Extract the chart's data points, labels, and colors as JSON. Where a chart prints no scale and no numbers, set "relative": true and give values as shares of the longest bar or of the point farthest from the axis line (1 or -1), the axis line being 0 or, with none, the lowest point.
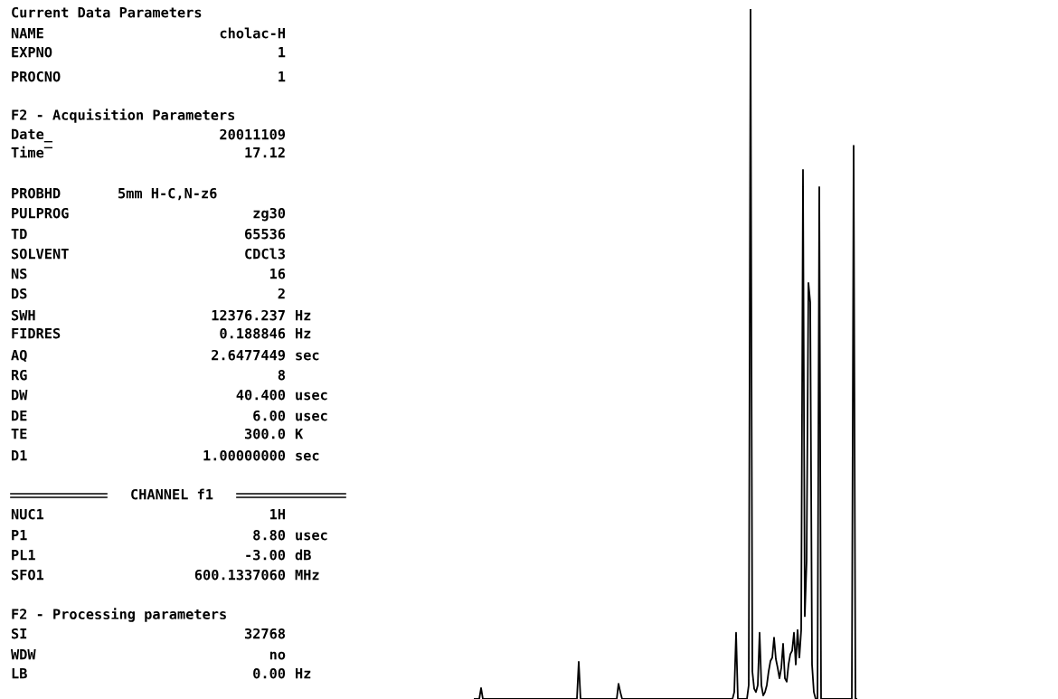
{
  "chart_data": {
    "type": "line",
    "relative": true,
    "categories": [
      null,
      null,
      null,
      null,
      null,
      null,
      null,
      null,
      null,
      null,
      null,
      null,
      null,
      null,
      null,
      null,
      null,
      null,
      null,
      null,
      null,
      null,
      null,
      null,
      null,
      null,
      null,
      null,
      null,
      null,
      null,
      null,
      null,
      null,
      null,
      null,
      null,
      null,
      null,
      null,
      null,
      null,
      null,
      null,
      null,
      null,
      null,
      null,
      null,
      null,
      null,
      null,
      null,
      null,
      null,
      null,
      null,
      null,
      null,
      null,
      null,
      null,
      null,
      null,
      null,
      null,
      null,
      null,
      null,
      null,
      null,
      null,
      null,
      null,
      null,
      null,
      null,
      null,
      null,
      null,
      null,
      null,
      null,
      null,
      null,
      null,
      null,
      null,
      null,
      null,
      null,
      null,
      null,
      null,
      null,
      null,
      null,
      null,
      null,
      null,
      null,
      null,
      null,
      null,
      null,
      null,
      null,
      null,
      null,
      null,
      null,
      null,
      null,
      null,
      null,
      null,
      null,
      null,
      null,
      null,
      null,
      null,
      null,
      null,
      null,
      null,
      null,
      null,
      null,
      null,
      null,
      null,
      null,
      null,
      null,
      null,
      null,
      null,
      null,
      null,
      null,
      null,
      null,
      null,
      null,
      null,
      null,
      null,
      null,
      null,
      null,
      null,
      null,
      null,
      null,
      null,
      null,
      null,
      null,
      null,
      null,
      null,
      null,
      null,
      null,
      null,
      null,
      null,
      null,
      null,
      null,
      null,
      null,
      null,
      null,
      null,
      null,
      null,
      null,
      null,
      null,
      null,
      null,
      null,
      null,
      null,
      null,
      null,
      null,
      null,
      null,
      null,
      null,
      null,
      null,
      null,
      null,
      null,
      null,
      null,
      null,
      null,
      null,
      null,
      null,
      null,
      null,
      null,
      null,
      null,
      null,
      null,
      null
    ],
    "series": [
      {
        "color": "#000000",
        "values": [
          0,
          0,
          0,
          0,
          0.016,
          0,
          0,
          0,
          0,
          0,
          0,
          0,
          0,
          0,
          0,
          0,
          0,
          0,
          0,
          0,
          0,
          0,
          0,
          0,
          0,
          0,
          0,
          0,
          0,
          0,
          0,
          0,
          0,
          0,
          0,
          0,
          0,
          0,
          0,
          0,
          0,
          0,
          0,
          0,
          0,
          0,
          0,
          0,
          0,
          0,
          0,
          0,
          0,
          0,
          0,
          0,
          0,
          0,
          0.054,
          0,
          0,
          0,
          0,
          0,
          0,
          0,
          0,
          0,
          0,
          0,
          0,
          0,
          0,
          0,
          0,
          0,
          0,
          0,
          0,
          0,
          0.022,
          0.01,
          0,
          0,
          0,
          0,
          0,
          0,
          0,
          0,
          0,
          0,
          0,
          0,
          0,
          0,
          0,
          0,
          0,
          0,
          0,
          0,
          0,
          0,
          0,
          0,
          0,
          0,
          0,
          0,
          0,
          0,
          0,
          0,
          0,
          0,
          0,
          0,
          0,
          0,
          0,
          0,
          0,
          0,
          0,
          0,
          0,
          0,
          0,
          0,
          0,
          0,
          0,
          0,
          0,
          0,
          0,
          0,
          0,
          0,
          0,
          0,
          0,
          0,
          0.01,
          0.096,
          0,
          0,
          0,
          0,
          0,
          0,
          0.02,
          1.0,
          0.04,
          0.015,
          0.01,
          0.02,
          0.096,
          0.02,
          0.005,
          0.01,
          0.02,
          0.04,
          0.055,
          0.06,
          0.089,
          0.058,
          0.045,
          0.03,
          0.045,
          0.08,
          0.03,
          0.025,
          0.05,
          0.065,
          0.07,
          0.096,
          0.05,
          0.1,
          0.06,
          0.1,
          0.767,
          0.12,
          0.2,
          0.603,
          0.575,
          0.05,
          0.01,
          0,
          0,
          0.742,
          0,
          0,
          0,
          0,
          0,
          0,
          0,
          0,
          0,
          0,
          0,
          0,
          0,
          0,
          0,
          0,
          0,
          0,
          0.802,
          0,
          0
        ]
      }
    ],
    "annotations": [
      "Current Data Parameters",
      "NAME",
      "cholac-H",
      "EXPNO",
      "1",
      "PROCNO",
      "1",
      "F2 - Acquisition Parameters",
      "Date_",
      "20011109",
      "Time‾",
      "17.12",
      "PROBHD",
      "5mm H-C,N-z6",
      "PULPROG",
      "zg30",
      "TD",
      "65536",
      "SOLVENT",
      "CDCl3",
      "NS",
      "16",
      "DS",
      "2",
      "SWH",
      "12376.237",
      "Hz",
      "FIDRES",
      "0.188846",
      "Hz",
      "AQ",
      "2.6477449",
      "sec",
      "RG",
      "8",
      "DW",
      "40.400",
      "usec",
      "DE",
      "6.00",
      "usec",
      "TE",
      "300.0",
      "K",
      "D1",
      "1.00000000",
      "sec",
      "CHANNEL f1",
      "NUC1",
      "1H",
      "P1",
      "8.80",
      "usec",
      "PL1",
      "-3.00",
      "dB",
      "SFO1",
      "600.1337060",
      "MHz",
      "F2 - Processing parameters",
      "SI",
      "32768",
      "WDW",
      "no",
      "LB",
      "0.00",
      "Hz"
    ]
  }
}
